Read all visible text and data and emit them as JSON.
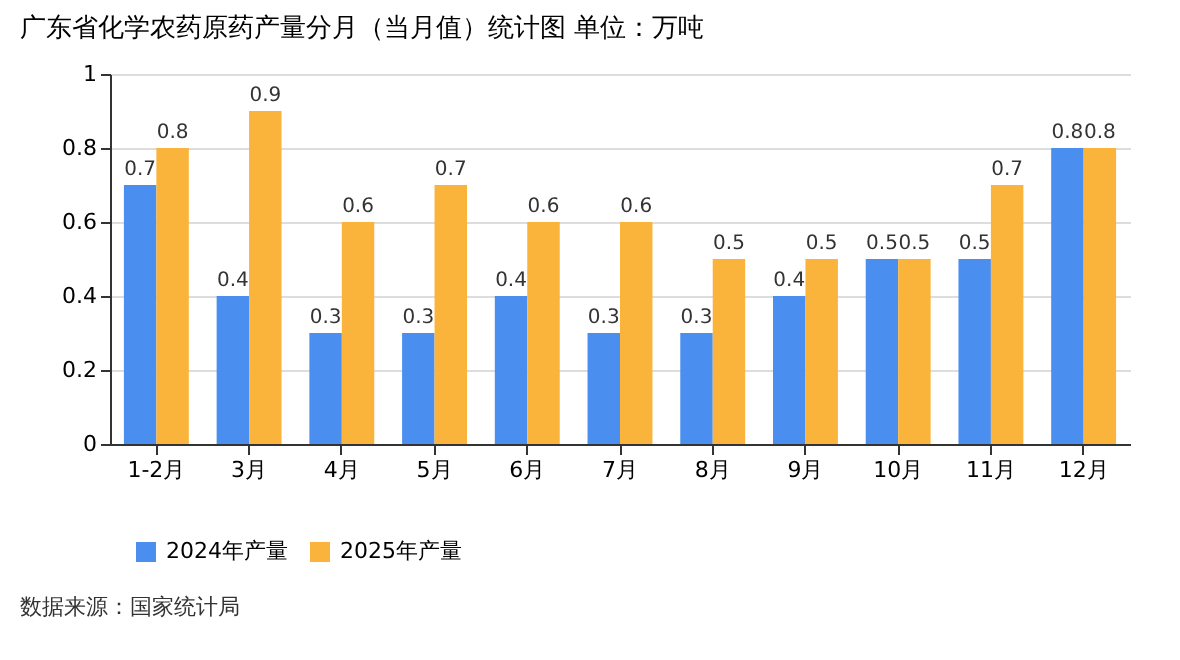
{
  "chart_data": {
    "type": "bar",
    "title": "广东省化学农药原药产量分月（当月值）统计图  单位：万吨",
    "categories": [
      "1-2月",
      "3月",
      "4月",
      "5月",
      "6月",
      "7月",
      "8月",
      "9月",
      "10月",
      "11月",
      "12月"
    ],
    "series": [
      {
        "name": "2024年产量",
        "color": "#4a8ff0",
        "values": [
          0.7,
          0.4,
          0.3,
          0.3,
          0.4,
          0.3,
          0.3,
          0.4,
          0.5,
          0.5,
          0.8
        ]
      },
      {
        "name": "2025年产量",
        "color": "#fab43c",
        "values": [
          0.8,
          0.9,
          0.6,
          0.7,
          0.6,
          0.6,
          0.5,
          0.5,
          0.5,
          0.7,
          0.8
        ]
      }
    ],
    "ylim": [
      0,
      1
    ],
    "yticks": [
      0,
      0.2,
      0.4,
      0.6,
      0.8,
      1
    ],
    "grid": "y",
    "legend": "bottom",
    "data_labels": true,
    "annotations": [
      "数据来源：国家统计局"
    ]
  }
}
